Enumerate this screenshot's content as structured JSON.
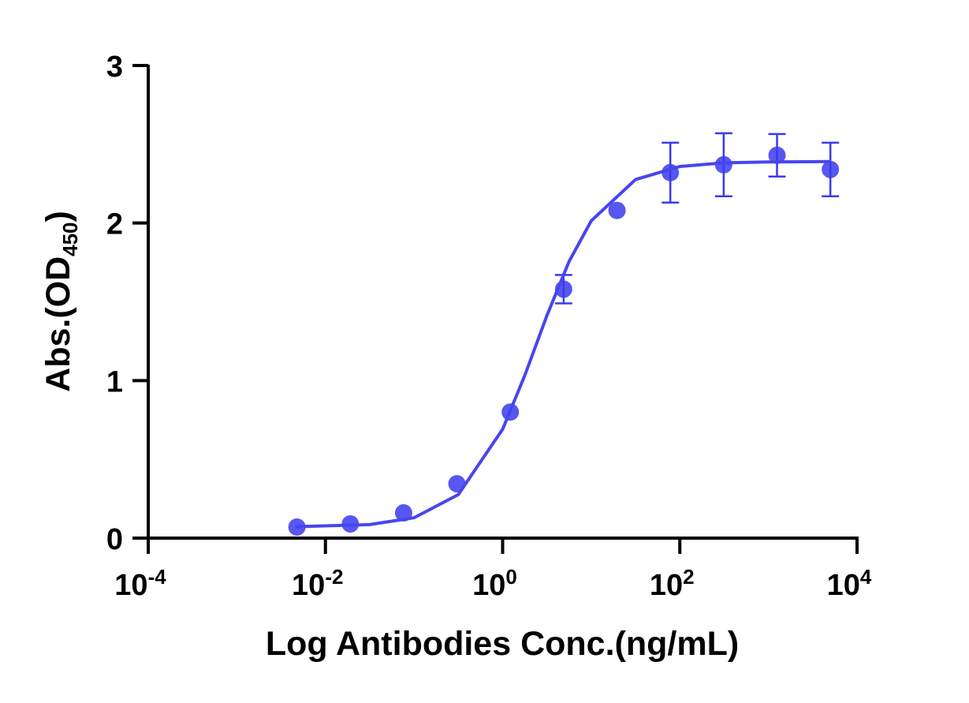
{
  "chart_data": {
    "type": "scatter",
    "x_label": "Log Antibodies Conc.(ng/mL)",
    "y_label": [
      "Abs.(OD",
      "450",
      ")"
    ],
    "log_x": true,
    "xlim": [
      0.0001,
      10000
    ],
    "ylim": [
      0,
      3
    ],
    "xticks": [
      {
        "value": 0.0001,
        "label": "10",
        "sup": "-4"
      },
      {
        "value": 0.01,
        "label": "10",
        "sup": "-2"
      },
      {
        "value": 1,
        "label": "10",
        "sup": "0"
      },
      {
        "value": 100,
        "label": "10",
        "sup": "2"
      },
      {
        "value": 10000,
        "label": "10",
        "sup": "4"
      }
    ],
    "yticks": [
      0,
      1,
      2,
      3
    ],
    "series": [
      {
        "color": "#3a3aee",
        "x": [
          0.00477,
          0.0191,
          0.0763,
          0.305,
          1.22,
          4.88,
          19.53,
          78.125,
          312.5,
          1250,
          5000
        ],
        "values": [
          0.07,
          0.09,
          0.16,
          0.345,
          0.8,
          1.58,
          2.08,
          2.32,
          2.37,
          2.43,
          2.34
        ],
        "errors": [
          null,
          null,
          null,
          null,
          null,
          0.09,
          null,
          0.19,
          0.2,
          0.135,
          0.17
        ]
      },
      {
        "type": "line",
        "color": "#4646f0",
        "x": [
          0.00457,
          0.0316,
          0.1,
          0.316,
          1,
          1.778,
          3.162,
          5.623,
          10,
          31.62,
          100,
          316.2,
          1000,
          5012
        ],
        "values": [
          0.072,
          0.086,
          0.129,
          0.276,
          0.691,
          1.032,
          1.413,
          1.756,
          2.014,
          2.276,
          2.359,
          2.382,
          2.388,
          2.39
        ]
      }
    ]
  }
}
